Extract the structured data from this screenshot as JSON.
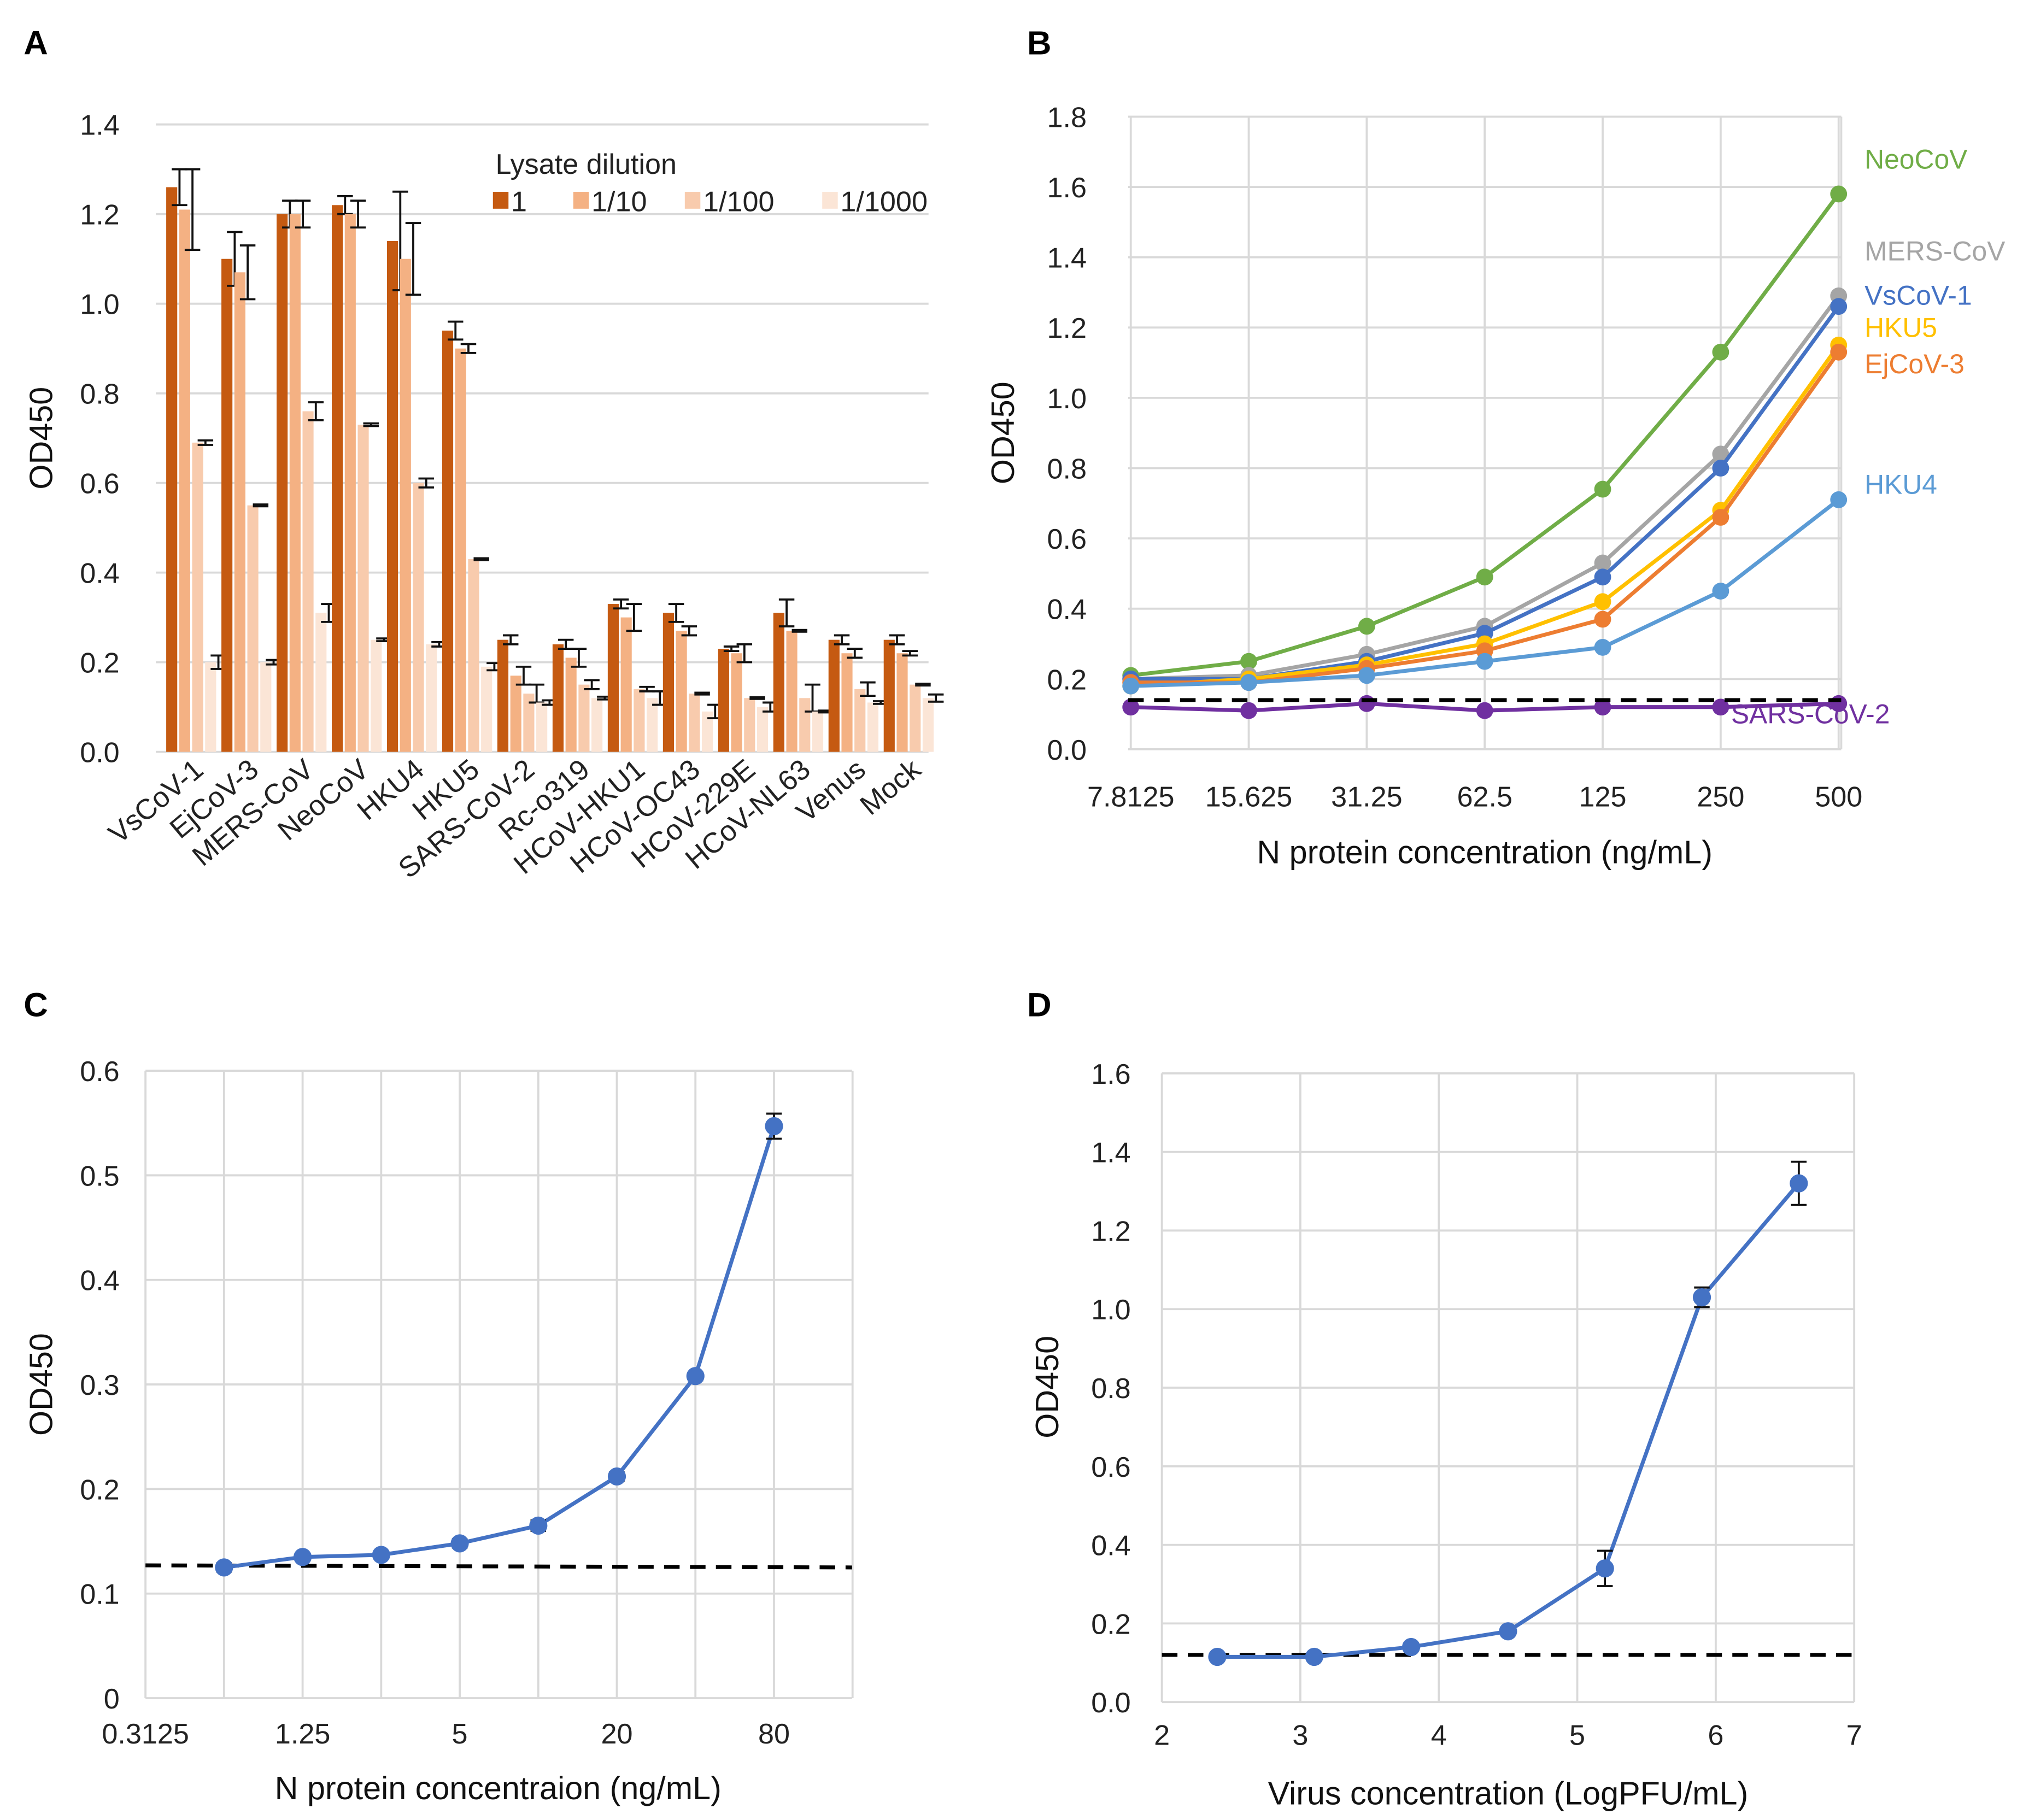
{
  "chart_data": [
    {
      "panel": "A",
      "type": "bar",
      "ylabel": "OD450",
      "ylim": [
        0,
        1.4
      ],
      "yticks": [
        "0.0",
        "0.2",
        "0.4",
        "0.6",
        "0.8",
        "1.0",
        "1.2",
        "1.4"
      ],
      "grid": true,
      "legend_title": "Lysate dilution",
      "legend_placement": "top-right",
      "categories": [
        "VsCoV-1",
        "EjCoV-3",
        "MERS-CoV",
        "NeoCoV",
        "HKU4",
        "HKU5",
        "SARS-CoV-2",
        "Rc-o319",
        "HCoV-HKU1",
        "HCoV-OC43",
        "HCoV-229E",
        "HCoV-NL63",
        "Venus",
        "Mock"
      ],
      "series": [
        {
          "name": "1",
          "color": "#C55A11",
          "values": [
            1.26,
            1.1,
            1.2,
            1.22,
            1.14,
            0.94,
            0.25,
            0.24,
            0.33,
            0.31,
            0.23,
            0.31,
            0.25,
            0.25
          ],
          "err": [
            0.04,
            0.06,
            0.03,
            0.02,
            0.11,
            0.02,
            0.01,
            0.01,
            0.01,
            0.02,
            0.005,
            0.03,
            0.01,
            0.01
          ]
        },
        {
          "name": "1/10",
          "color": "#F4B183",
          "values": [
            1.21,
            1.07,
            1.2,
            1.2,
            1.1,
            0.9,
            0.17,
            0.21,
            0.3,
            0.27,
            0.22,
            0.27,
            0.22,
            0.22
          ],
          "err": [
            0.09,
            0.06,
            0.03,
            0.03,
            0.08,
            0.01,
            0.02,
            0.02,
            0.03,
            0.01,
            0.02,
            0.002,
            0.01,
            0.005
          ]
        },
        {
          "name": "1/100",
          "color": "#F8CBAD",
          "values": [
            0.69,
            0.55,
            0.76,
            0.73,
            0.6,
            0.43,
            0.13,
            0.15,
            0.14,
            0.13,
            0.12,
            0.12,
            0.14,
            0.15
          ],
          "err": [
            0.005,
            0.002,
            0.02,
            0.003,
            0.01,
            0.002,
            0.02,
            0.01,
            0.005,
            0.002,
            0.002,
            0.03,
            0.015,
            0.002
          ]
        },
        {
          "name": "1/1000",
          "color": "#FBE5D6",
          "values": [
            0.2,
            0.2,
            0.31,
            0.25,
            0.24,
            0.19,
            0.11,
            0.12,
            0.12,
            0.09,
            0.1,
            0.09,
            0.11,
            0.12
          ],
          "err": [
            0.015,
            0.005,
            0.02,
            0.003,
            0.005,
            0.008,
            0.005,
            0.003,
            0.015,
            0.015,
            0.01,
            0.002,
            0.003,
            0.008
          ]
        }
      ]
    },
    {
      "panel": "B",
      "type": "line",
      "xlabel": "N protein concentration (ng/mL)",
      "ylabel": "OD450",
      "ylim": [
        0,
        1.8
      ],
      "yticks": [
        "0.0",
        "0.2",
        "0.4",
        "0.6",
        "0.8",
        "1.0",
        "1.2",
        "1.4",
        "1.6",
        "1.8"
      ],
      "categories": [
        "7.8125",
        "15.625",
        "31.25",
        "62.5",
        "125",
        "250",
        "500"
      ],
      "grid": true,
      "baseline": 0.14,
      "series": [
        {
          "name": "NeoCoV",
          "color": "#70AD47",
          "values": [
            0.21,
            0.25,
            0.35,
            0.49,
            0.74,
            1.13,
            1.58
          ]
        },
        {
          "name": "MERS-CoV",
          "color": "#A5A5A5",
          "values": [
            0.2,
            0.21,
            0.27,
            0.35,
            0.53,
            0.84,
            1.29
          ]
        },
        {
          "name": "VsCoV-1",
          "color": "#4472C4",
          "values": [
            0.2,
            0.2,
            0.25,
            0.33,
            0.49,
            0.8,
            1.26
          ]
        },
        {
          "name": "HKU5",
          "color": "#FFC000",
          "values": [
            0.18,
            0.2,
            0.24,
            0.3,
            0.42,
            0.68,
            1.15
          ]
        },
        {
          "name": "EjCoV-3",
          "color": "#ED7D31",
          "values": [
            0.19,
            0.19,
            0.23,
            0.28,
            0.37,
            0.66,
            1.13
          ]
        },
        {
          "name": "HKU4",
          "color": "#5B9BD5",
          "values": [
            0.18,
            0.19,
            0.21,
            0.25,
            0.29,
            0.45,
            0.71
          ]
        },
        {
          "name": "SARS-CoV-2",
          "color": "#7030A0",
          "values": [
            0.12,
            0.11,
            0.13,
            0.11,
            0.12,
            0.12,
            0.13
          ]
        }
      ]
    },
    {
      "panel": "C",
      "type": "line",
      "xlabel": "N protein concentraion (ng/mL)",
      "ylabel": "OD450",
      "ylim": [
        0,
        0.6
      ],
      "yticks": [
        "0",
        "0.1",
        "0.2",
        "0.3",
        "0.4",
        "0.5",
        "0.6"
      ],
      "xticks": [
        "0.3125",
        "1.25",
        "5",
        "20",
        "80"
      ],
      "x_scale": "log2",
      "grid": true,
      "baseline": 0.127,
      "color": "#4472C4",
      "x": [
        0.625,
        1.25,
        2.5,
        5,
        10,
        20,
        40,
        80
      ],
      "y": [
        0.125,
        0.135,
        0.137,
        0.148,
        0.165,
        0.212,
        0.308,
        0.547
      ],
      "err": [
        0.004,
        0.003,
        0.003,
        0.004,
        0.005,
        0.004,
        0.004,
        0.012
      ]
    },
    {
      "panel": "D",
      "type": "line",
      "xlabel": "Virus concentration (LogPFU/mL)",
      "ylabel": "OD450",
      "xlim": [
        2,
        7
      ],
      "ylim": [
        0,
        1.6
      ],
      "xticks": [
        "2",
        "3",
        "4",
        "5",
        "6",
        "7"
      ],
      "yticks": [
        "0.0",
        "0.2",
        "0.4",
        "0.6",
        "0.8",
        "1.0",
        "1.2",
        "1.4",
        "1.6"
      ],
      "grid": true,
      "baseline": 0.12,
      "color": "#4472C4",
      "x": [
        2.4,
        3.1,
        3.8,
        4.5,
        5.2,
        5.9,
        6.6
      ],
      "y": [
        0.115,
        0.115,
        0.14,
        0.18,
        0.34,
        1.03,
        1.32
      ],
      "err": [
        0.005,
        0.005,
        0.005,
        0.005,
        0.045,
        0.025,
        0.055
      ]
    }
  ]
}
